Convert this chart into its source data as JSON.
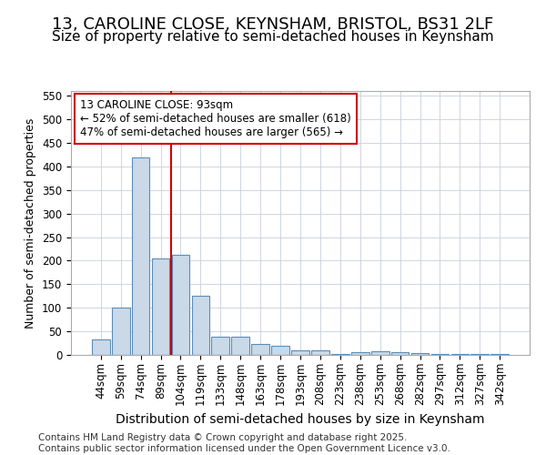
{
  "title1": "13, CAROLINE CLOSE, KEYNSHAM, BRISTOL, BS31 2LF",
  "title2": "Size of property relative to semi-detached houses in Keynsham",
  "xlabel": "Distribution of semi-detached houses by size in Keynsham",
  "ylabel": "Number of semi-detached properties",
  "categories": [
    "44sqm",
    "59sqm",
    "74sqm",
    "89sqm",
    "104sqm",
    "119sqm",
    "133sqm",
    "148sqm",
    "163sqm",
    "178sqm",
    "193sqm",
    "208sqm",
    "223sqm",
    "238sqm",
    "253sqm",
    "268sqm",
    "282sqm",
    "297sqm",
    "312sqm",
    "327sqm",
    "342sqm"
  ],
  "values": [
    33,
    101,
    420,
    204,
    213,
    126,
    38,
    38,
    23,
    19,
    9,
    9,
    2,
    6,
    7,
    5,
    4,
    1,
    2,
    1,
    2
  ],
  "bar_color": "#c9d9e8",
  "bar_edge_color": "#5b8db8",
  "vline_x_idx": 3,
  "vline_color": "#cc0000",
  "annotation_title": "13 CAROLINE CLOSE: 93sqm",
  "annotation_line1": "← 52% of semi-detached houses are smaller (618)",
  "annotation_line2": "47% of semi-detached houses are larger (565) →",
  "annotation_box_color": "#ffffff",
  "annotation_box_edge": "#cc0000",
  "ylim": [
    0,
    560
  ],
  "yticks": [
    0,
    50,
    100,
    150,
    200,
    250,
    300,
    350,
    400,
    450,
    500,
    550
  ],
  "footer1": "Contains HM Land Registry data © Crown copyright and database right 2025.",
  "footer2": "Contains public sector information licensed under the Open Government Licence v3.0.",
  "bg_color": "#ffffff",
  "grid_color": "#c8d0dc",
  "title1_fontsize": 13,
  "title2_fontsize": 11,
  "xlabel_fontsize": 10,
  "ylabel_fontsize": 9,
  "tick_fontsize": 8.5,
  "annotation_fontsize": 8.5,
  "footer_fontsize": 7.5
}
